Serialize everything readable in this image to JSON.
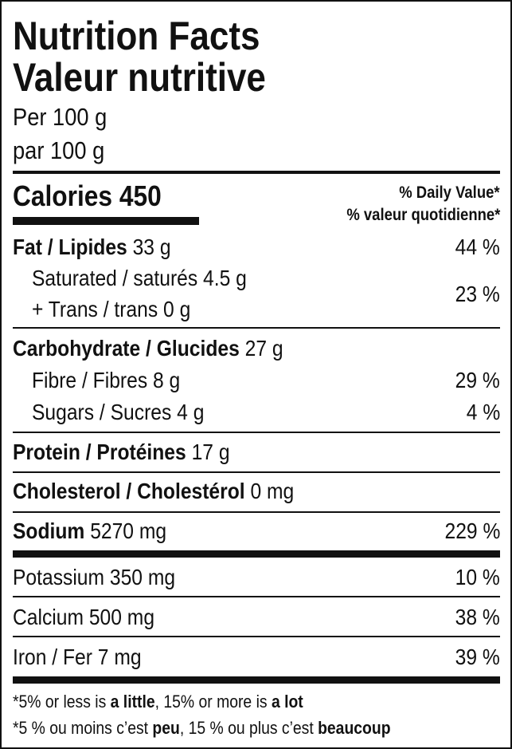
{
  "header": {
    "title_en": "Nutrition Facts",
    "title_fr": "Valeur nutritive",
    "serving_en": "Per 100 g",
    "serving_fr": "par 100 g"
  },
  "calories": {
    "label": "Calories",
    "value": "450"
  },
  "daily_value": {
    "en": "% Daily Value*",
    "fr": "% valeur quotidienne*"
  },
  "nutrients": {
    "fat": {
      "label": "Fat / Lipides",
      "amount": "33 g",
      "dv": "44 %"
    },
    "saturated": {
      "label": "Saturated / saturés",
      "amount": "4.5 g"
    },
    "trans": {
      "label": "+ Trans / trans",
      "amount": "0 g"
    },
    "sat_trans_dv": "23 %",
    "carbohydrate": {
      "label": "Carbohydrate / Glucides",
      "amount": "27 g"
    },
    "fibre": {
      "label": "Fibre / Fibres",
      "amount": "8 g",
      "dv": "29 %"
    },
    "sugars": {
      "label": "Sugars / Sucres",
      "amount": "4 g",
      "dv": "4 %"
    },
    "protein": {
      "label": "Protein / Protéines",
      "amount": "17 g"
    },
    "cholesterol": {
      "label": "Cholesterol / Cholestérol",
      "amount": "0 mg"
    },
    "sodium": {
      "label": "Sodium",
      "amount": "5270 mg",
      "dv": "229 %"
    },
    "potassium": {
      "label": "Potassium",
      "amount": "350 mg",
      "dv": "10 %"
    },
    "calcium": {
      "label": "Calcium",
      "amount": "500 mg",
      "dv": "38 %"
    },
    "iron": {
      "label": "Iron / Fer",
      "amount": "7 mg",
      "dv": "39 %"
    }
  },
  "footnote": {
    "en": {
      "p1": "*5% or less is ",
      "b1": "a little",
      "p2": ", 15% or more is ",
      "b2": "a lot"
    },
    "fr": {
      "p1": "*5 % ou moins c’est ",
      "b1": "peu",
      "p2": ", 15 % ou plus c’est ",
      "b2": "beaucoup"
    }
  }
}
